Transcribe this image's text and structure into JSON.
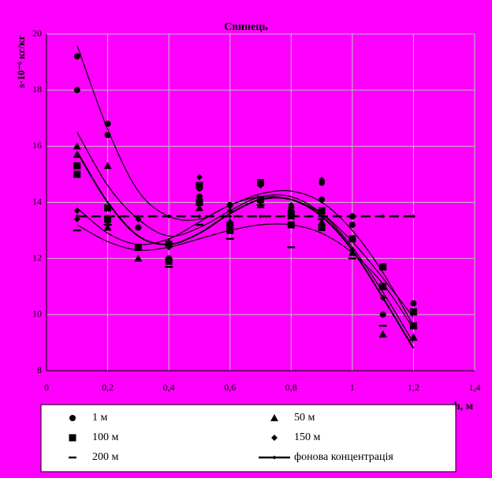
{
  "chart_data": {
    "type": "scatter",
    "title": "Свинець",
    "ylabel": "s·10⁻⁶ кг/кг",
    "xlabel": "h, м",
    "xlim": [
      0,
      1.4
    ],
    "ylim": [
      8,
      20
    ],
    "xticks": [
      0,
      {
        "value": 0.2,
        "label": "0,2"
      },
      {
        "value": 0.4,
        "label": "0,4"
      },
      {
        "value": 0.6,
        "label": "0,6"
      },
      {
        "value": 0.8,
        "label": "0,8"
      },
      1,
      {
        "value": 1.2,
        "label": "1,2"
      },
      {
        "value": 1.4,
        "label": "1,4"
      }
    ],
    "yticks": [
      8,
      10,
      12,
      14,
      16,
      18,
      20
    ],
    "grid": true,
    "color": "#000000",
    "series": [
      {
        "name": "1 м",
        "marker": "circle",
        "x": [
          0.1,
          0.1,
          0.2,
          0.2,
          0.3,
          0.4,
          0.5,
          0.5,
          0.6,
          0.7,
          0.8,
          0.9,
          0.9,
          1.0,
          1.0,
          1.1,
          1.2
        ],
        "values": [
          19.2,
          18.0,
          16.8,
          16.4,
          13.1,
          12.0,
          14.5,
          14.2,
          13.9,
          14.7,
          13.8,
          14.1,
          14.7,
          13.5,
          13.2,
          10.0,
          10.4
        ]
      },
      {
        "name": "50 м",
        "marker": "triangle",
        "x": [
          0.1,
          0.1,
          0.2,
          0.2,
          0.3,
          0.4,
          0.5,
          0.6,
          0.7,
          0.8,
          0.9,
          1.0,
          1.1,
          1.2
        ],
        "values": [
          16.0,
          15.7,
          15.3,
          13.1,
          12.0,
          12.6,
          13.8,
          13.3,
          13.9,
          13.5,
          13.3,
          12.2,
          9.3,
          9.2
        ]
      },
      {
        "name": "100 м",
        "marker": "square",
        "x": [
          0.1,
          0.1,
          0.2,
          0.2,
          0.3,
          0.4,
          0.4,
          0.5,
          0.5,
          0.6,
          0.6,
          0.7,
          0.7,
          0.8,
          0.8,
          0.9,
          0.9,
          1.0,
          1.1,
          1.1,
          1.2,
          1.2
        ],
        "values": [
          15.3,
          15.0,
          13.8,
          13.4,
          12.4,
          11.9,
          12.5,
          14.6,
          14.0,
          13.2,
          13.0,
          14.7,
          14.1,
          13.2,
          13.6,
          13.7,
          13.1,
          12.7,
          11.7,
          11.0,
          10.1,
          9.6
        ]
      },
      {
        "name": "150 м",
        "marker": "diamond",
        "x": [
          0.1,
          0.1,
          0.2,
          0.3,
          0.4,
          0.5,
          0.6,
          0.7,
          0.8,
          0.9,
          1.0,
          1.1,
          1.2
        ],
        "values": [
          13.7,
          13.4,
          13.3,
          13.4,
          12.4,
          14.9,
          13.7,
          14.6,
          13.9,
          14.8,
          12.3,
          10.6,
          10.1
        ]
      },
      {
        "name": "200 м",
        "marker": "dash",
        "x": [
          0.1,
          0.2,
          0.3,
          0.4,
          0.5,
          0.6,
          0.7,
          0.8,
          0.9,
          1.0,
          1.1,
          1.2
        ],
        "values": [
          13.0,
          13.2,
          12.3,
          11.7,
          13.2,
          12.7,
          13.9,
          12.4,
          13.4,
          12.0,
          9.6,
          9.1
        ]
      },
      {
        "name": "фонова концентрація",
        "marker": "line",
        "x": [
          0.1,
          0.2,
          0.3,
          0.4,
          0.5,
          0.6,
          0.7,
          0.8,
          0.9,
          1.0,
          1.1,
          1.2
        ],
        "values": [
          13.5,
          13.5,
          13.5,
          13.5,
          13.5,
          13.5,
          13.5,
          13.5,
          13.5,
          13.5,
          13.5,
          13.5
        ]
      }
    ],
    "trend_x": [
      0.1,
      0.2,
      0.3,
      0.4,
      0.5,
      0.6,
      0.7,
      0.8,
      0.9,
      1.0,
      1.1,
      1.2
    ],
    "trendlines": [
      [
        19.6,
        16.6,
        14.4,
        13.5,
        13.4,
        13.9,
        14.3,
        14.4,
        14.0,
        13.0,
        11.5,
        9.6
      ],
      [
        16.5,
        14.6,
        13.4,
        12.8,
        13.1,
        13.7,
        14.2,
        14.2,
        13.6,
        12.4,
        10.8,
        9.0
      ],
      [
        15.8,
        14.0,
        12.8,
        12.5,
        12.9,
        13.6,
        14.1,
        14.1,
        13.5,
        12.3,
        10.6,
        8.8
      ],
      [
        13.8,
        12.9,
        12.5,
        12.7,
        13.3,
        13.9,
        14.2,
        14.1,
        13.6,
        12.6,
        11.3,
        9.9
      ],
      [
        13.2,
        12.6,
        12.3,
        12.4,
        12.7,
        13.0,
        13.2,
        13.2,
        12.9,
        12.2,
        11.1,
        9.5
      ]
    ]
  }
}
